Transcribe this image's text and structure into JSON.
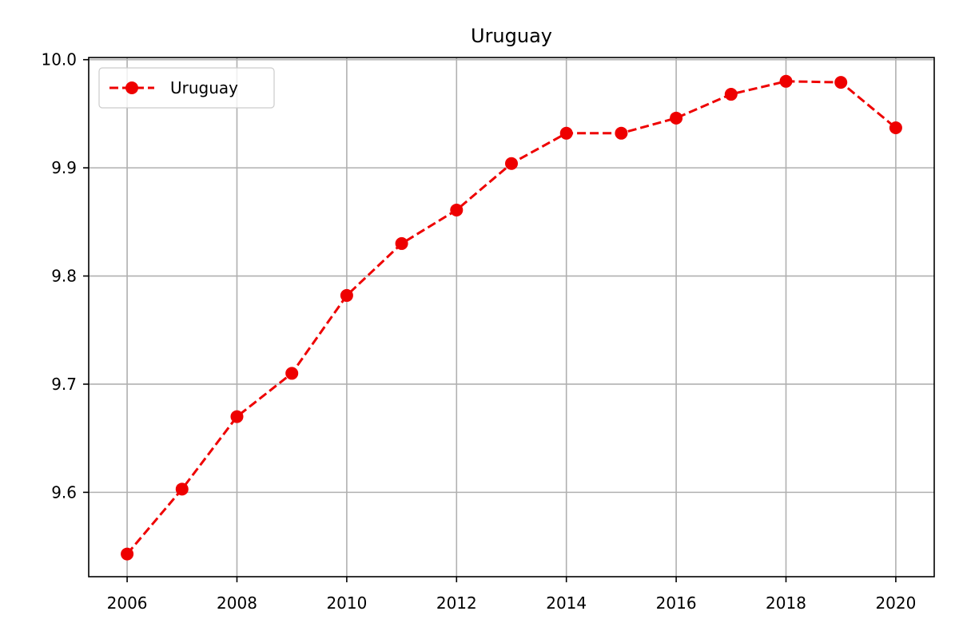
{
  "chart_data": {
    "type": "line",
    "title": "Uruguay",
    "xlabel": "",
    "ylabel": "",
    "x": [
      2006,
      2007,
      2008,
      2009,
      2010,
      2011,
      2012,
      2013,
      2014,
      2015,
      2016,
      2017,
      2018,
      2019,
      2020
    ],
    "series": [
      {
        "name": "Uruguay",
        "values": [
          9.543,
          9.603,
          9.67,
          9.71,
          9.782,
          9.83,
          9.861,
          9.904,
          9.932,
          9.932,
          9.946,
          9.968,
          9.98,
          9.979,
          9.937
        ],
        "color": "#ee0000",
        "line_style": "dashed",
        "marker": "circle"
      }
    ],
    "xlim": [
      2005.3,
      2020.7
    ],
    "ylim": [
      9.522,
      10.002
    ],
    "x_ticks": [
      "2006",
      "2008",
      "2010",
      "2012",
      "2014",
      "2016",
      "2018",
      "2020"
    ],
    "y_ticks": [
      "9.6",
      "9.7",
      "9.8",
      "9.9",
      "10.0"
    ],
    "grid": true,
    "legend_position": "upper-left"
  }
}
